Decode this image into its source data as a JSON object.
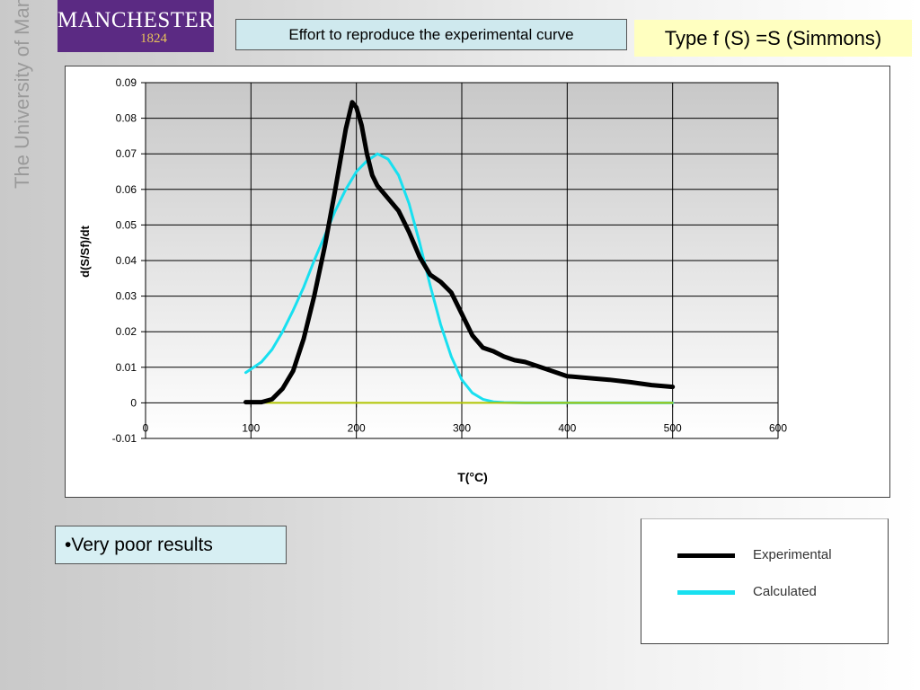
{
  "branding": {
    "wordmark": "MANCHESTER",
    "year": "1824",
    "university": "The University of Manchester"
  },
  "slide": {
    "title": "Effort to reproduce the experimental curve",
    "type_label": "Type f (S) =S (Simmons)",
    "bullet": "•Very poor results"
  },
  "colors": {
    "experimental": "#000000",
    "calculated": "#18e0f0",
    "baseline": "#b0c400",
    "logo_bg": "#5b2a83"
  },
  "chart_data": {
    "type": "line",
    "xlabel": "T(°C)",
    "ylabel": "d(S/Sf)/dt",
    "xlim": [
      0,
      600
    ],
    "ylim": [
      -0.01,
      0.09
    ],
    "x_ticks": [
      "0",
      "100",
      "200",
      "300",
      "400",
      "500",
      "600"
    ],
    "y_ticks": [
      "0.09",
      "0.08",
      "0.07",
      "0.06",
      "0.05",
      "0.04",
      "0.03",
      "0.02",
      "0.01",
      "0",
      "-0.01"
    ],
    "grid": true,
    "legend_position": "bottom-right",
    "series": [
      {
        "name": "Experimental",
        "color": "#000000",
        "points": [
          [
            95,
            0.0002
          ],
          [
            110,
            0.0002
          ],
          [
            120,
            0.001
          ],
          [
            130,
            0.004
          ],
          [
            140,
            0.009
          ],
          [
            150,
            0.018
          ],
          [
            160,
            0.03
          ],
          [
            170,
            0.044
          ],
          [
            180,
            0.06
          ],
          [
            190,
            0.077
          ],
          [
            196,
            0.0845
          ],
          [
            200,
            0.083
          ],
          [
            205,
            0.078
          ],
          [
            210,
            0.07
          ],
          [
            215,
            0.064
          ],
          [
            220,
            0.061
          ],
          [
            230,
            0.0575
          ],
          [
            240,
            0.054
          ],
          [
            250,
            0.048
          ],
          [
            260,
            0.041
          ],
          [
            270,
            0.036
          ],
          [
            280,
            0.034
          ],
          [
            290,
            0.031
          ],
          [
            300,
            0.025
          ],
          [
            310,
            0.019
          ],
          [
            320,
            0.0155
          ],
          [
            330,
            0.0145
          ],
          [
            340,
            0.013
          ],
          [
            350,
            0.012
          ],
          [
            360,
            0.0115
          ],
          [
            380,
            0.0095
          ],
          [
            400,
            0.0075
          ],
          [
            420,
            0.007
          ],
          [
            440,
            0.0065
          ],
          [
            460,
            0.0058
          ],
          [
            480,
            0.005
          ],
          [
            500,
            0.0045
          ]
        ]
      },
      {
        "name": "Calculated",
        "color": "#18e0f0",
        "points": [
          [
            95,
            0.0085
          ],
          [
            110,
            0.0115
          ],
          [
            120,
            0.015
          ],
          [
            130,
            0.02
          ],
          [
            140,
            0.026
          ],
          [
            150,
            0.0325
          ],
          [
            160,
            0.04
          ],
          [
            170,
            0.047
          ],
          [
            180,
            0.054
          ],
          [
            190,
            0.06
          ],
          [
            200,
            0.065
          ],
          [
            210,
            0.068
          ],
          [
            220,
            0.07
          ],
          [
            230,
            0.0685
          ],
          [
            240,
            0.064
          ],
          [
            250,
            0.056
          ],
          [
            260,
            0.045
          ],
          [
            270,
            0.033
          ],
          [
            280,
            0.022
          ],
          [
            290,
            0.013
          ],
          [
            300,
            0.0065
          ],
          [
            310,
            0.0028
          ],
          [
            320,
            0.001
          ],
          [
            330,
            0.0003
          ],
          [
            340,
            0.0001
          ],
          [
            360,
            0.0
          ],
          [
            400,
            0.0
          ],
          [
            450,
            0.0
          ],
          [
            500,
            0.0
          ]
        ]
      },
      {
        "color": "#b0c400",
        "points": [
          [
            110,
            0.0
          ],
          [
            500,
            0.0
          ]
        ]
      }
    ]
  }
}
